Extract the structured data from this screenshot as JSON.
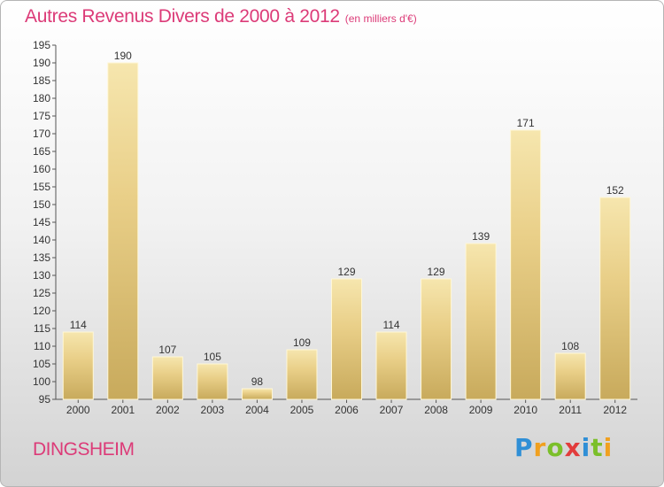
{
  "header": {
    "title": "Autres Revenus Divers de 2000 à 2012",
    "subtitle": "(en milliers d'€)"
  },
  "footer": {
    "commune": "DINGSHEIM",
    "logo_text": "Proxiti"
  },
  "chart_data": {
    "type": "bar",
    "title": "Autres Revenus Divers de 2000 à 2012",
    "subtitle": "(en milliers d'€)",
    "xlabel": "",
    "ylabel": "",
    "categories": [
      "2000",
      "2001",
      "2002",
      "2003",
      "2004",
      "2005",
      "2006",
      "2007",
      "2008",
      "2009",
      "2010",
      "2011",
      "2012"
    ],
    "values": [
      114,
      190,
      107,
      105,
      98,
      109,
      129,
      114,
      129,
      139,
      171,
      108,
      152
    ],
    "ylim": [
      95,
      195
    ],
    "yticks": [
      95,
      100,
      105,
      110,
      115,
      120,
      125,
      130,
      135,
      140,
      145,
      150,
      155,
      160,
      165,
      170,
      175,
      180,
      185,
      190,
      195
    ],
    "grid": false,
    "bar_color": "#e9cf88",
    "bar_color_light": "#f6e6ae",
    "bar_color_dark": "#c8aa5c",
    "data_labels": true
  }
}
